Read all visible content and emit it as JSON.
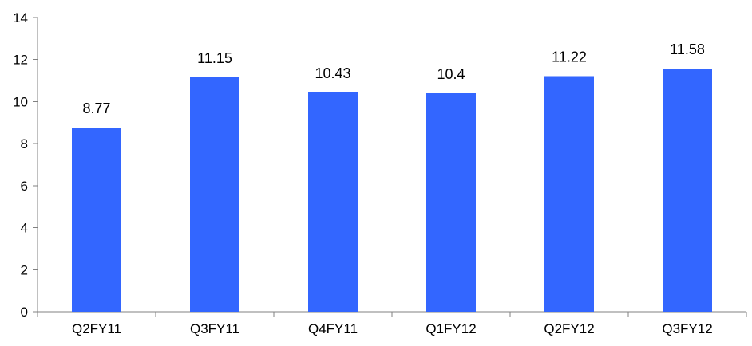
{
  "chart_data": {
    "type": "bar",
    "categories": [
      "Q2FY11",
      "Q3FY11",
      "Q4FY11",
      "Q1FY12",
      "Q2FY12",
      "Q3FY12"
    ],
    "values": [
      8.77,
      11.15,
      10.43,
      10.4,
      11.22,
      11.58
    ],
    "data_labels": [
      "8.77",
      "11.15",
      "10.43",
      "10.4",
      "11.22",
      "11.58"
    ],
    "ylim": [
      0,
      14
    ],
    "yticks": [
      0,
      2,
      4,
      6,
      8,
      10,
      12,
      14
    ],
    "title": "",
    "xlabel": "",
    "ylabel": "",
    "grid": false,
    "legend": "none",
    "bar_color": "#3366ff"
  }
}
